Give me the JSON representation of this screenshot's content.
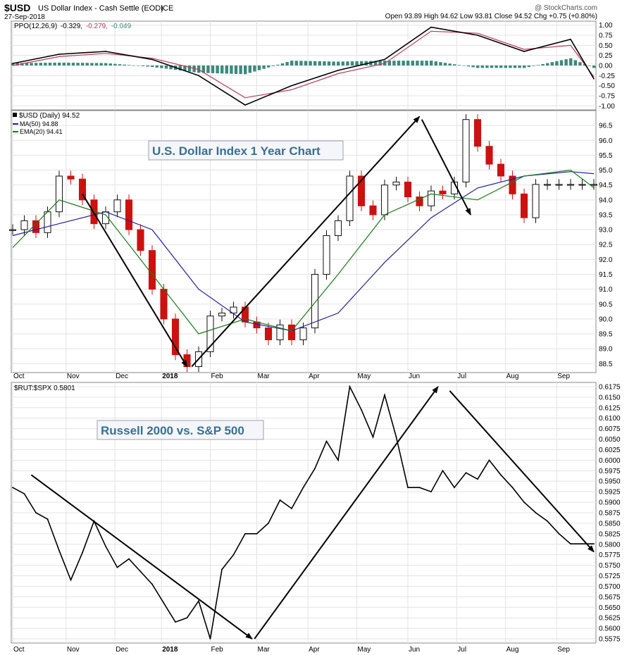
{
  "header": {
    "symbol": "$USD",
    "name": "US Dollar Index - Cash Settle (EOD)",
    "exchange": "ICE",
    "date": "27-Sep-2018",
    "ohlc": "Open 93.89  High 94.62  Low 93.81  Close 94.52  Chg +0.75 (+0.80%)",
    "watermark": "@ StockCharts.com"
  },
  "chart_data": [
    {
      "type": "line",
      "panel": "ppo",
      "legend": [
        "PPO(12,26,9) -0.329, -0.279, -0.049"
      ],
      "legend_parts": {
        "label": "PPO(12,26,9)",
        "ppo": "-0.329,",
        "signal": "-0.279,",
        "hist": "-0.049"
      },
      "ylim": [
        -1.1,
        1.1
      ],
      "yticks": [
        1.0,
        0.75,
        0.5,
        0.25,
        0.0,
        -0.25,
        -0.5,
        -0.75,
        -1.0
      ],
      "ytick_labels": [
        "1.00",
        "0.75",
        "0.50",
        "0.25",
        "0.00",
        "-0.25",
        "-0.50",
        "-0.75",
        "-1.00"
      ],
      "x": [
        0,
        20,
        40,
        60,
        80,
        100,
        120,
        140,
        160,
        180,
        200,
        220,
        240,
        250
      ],
      "series": [
        {
          "role": "ppo",
          "color": "#000000",
          "values": [
            0.05,
            0.28,
            0.35,
            0.15,
            -0.25,
            -0.98,
            -0.5,
            -0.12,
            0.15,
            0.95,
            0.75,
            0.35,
            0.65,
            -0.33
          ]
        },
        {
          "role": "signal",
          "color": "#c0395a",
          "values": [
            0.0,
            0.22,
            0.3,
            0.18,
            -0.1,
            -0.8,
            -0.6,
            -0.2,
            0.05,
            0.85,
            0.8,
            0.4,
            0.5,
            -0.28
          ]
        }
      ],
      "histogram_color": "#3b8a7a"
    },
    {
      "type": "bar",
      "panel": "price",
      "legend": [
        "$USD (Daily) 94.52",
        "MA(50) 94.88",
        "EMA(20) 94.41"
      ],
      "legend_colors": [
        "#000000",
        "#1f1fa3",
        "#1a7a1a"
      ],
      "ylim": [
        88.2,
        97.0
      ],
      "yticks": [
        96.5,
        96.0,
        95.5,
        95.0,
        94.5,
        94.0,
        93.5,
        93.0,
        92.5,
        92.0,
        91.5,
        91.0,
        90.5,
        90.0,
        89.5,
        89.0,
        88.5
      ],
      "ytick_labels": [
        "96.5",
        "96.0",
        "95.5",
        "95.0",
        "94.5",
        "94.0",
        "93.5",
        "93.0",
        "92.5",
        "92.0",
        "91.5",
        "91.0",
        "90.5",
        "90.0",
        "89.5",
        "89.0",
        "88.5"
      ],
      "x": [
        0,
        5,
        10,
        15,
        20,
        25,
        30,
        35,
        40,
        45,
        50,
        55,
        60,
        65,
        70,
        75,
        80,
        85,
        90,
        95,
        100,
        105,
        110,
        115,
        120,
        125,
        130,
        135,
        140,
        145,
        150,
        155,
        160,
        165,
        170,
        175,
        180,
        185,
        190,
        195,
        200,
        205,
        210,
        215,
        220,
        225,
        230,
        235,
        240,
        245,
        250
      ],
      "values": [
        93.0,
        93.3,
        92.9,
        93.6,
        94.8,
        94.7,
        94.0,
        93.2,
        93.6,
        94.0,
        93.0,
        92.3,
        91.0,
        90.0,
        88.8,
        88.4,
        88.9,
        90.1,
        90.2,
        90.4,
        89.9,
        89.7,
        89.3,
        89.8,
        89.3,
        89.7,
        91.5,
        92.8,
        93.3,
        94.8,
        93.8,
        93.5,
        94.5,
        94.6,
        94.1,
        93.8,
        94.3,
        94.2,
        94.6,
        96.7,
        95.8,
        95.2,
        94.8,
        94.2,
        93.4,
        94.52,
        94.52,
        94.52,
        94.52,
        94.52,
        94.52
      ],
      "ma50": {
        "x": [
          0,
          20,
          40,
          60,
          80,
          100,
          120,
          140,
          160,
          180,
          200,
          220,
          240,
          250
        ],
        "values": [
          92.8,
          93.2,
          93.6,
          93.0,
          91.0,
          89.9,
          89.6,
          90.2,
          91.9,
          93.4,
          94.4,
          94.8,
          94.95,
          94.88
        ]
      },
      "ema20": {
        "x": [
          0,
          20,
          40,
          60,
          80,
          100,
          120,
          140,
          160,
          180,
          200,
          220,
          240,
          250
        ],
        "values": [
          92.4,
          94.0,
          93.5,
          91.5,
          89.5,
          90.0,
          89.6,
          91.5,
          93.5,
          94.2,
          94.0,
          94.8,
          95.0,
          94.41
        ]
      },
      "annotation": "U.S. Dollar Index 1 Year Chart",
      "trend_arrows": [
        {
          "from": [
            30,
            94.2
          ],
          "to": [
            75,
            88.4
          ]
        },
        {
          "from": [
            77,
            88.4
          ],
          "to": [
            175,
            96.8
          ]
        },
        {
          "from": [
            176,
            96.7
          ],
          "to": [
            197,
            93.5
          ]
        }
      ]
    },
    {
      "type": "line",
      "panel": "ratio",
      "legend": [
        "$RUT:$SPX 0.5801"
      ],
      "ylim": [
        0.5565,
        0.6185
      ],
      "yticks": [
        0.6175,
        0.615,
        0.6125,
        0.61,
        0.6075,
        0.605,
        0.6025,
        0.6,
        0.5975,
        0.595,
        0.5925,
        0.59,
        0.5875,
        0.585,
        0.5825,
        0.58,
        0.5775,
        0.575,
        0.5725,
        0.57,
        0.5675,
        0.565,
        0.5625,
        0.56,
        0.5575
      ],
      "ytick_labels": [
        "0.6175",
        "0.6150",
        "0.6125",
        "0.6100",
        "0.6075",
        "0.6050",
        "0.6025",
        "0.6000",
        "0.5975",
        "0.5950",
        "0.5925",
        "0.5900",
        "0.5875",
        "0.5850",
        "0.5825",
        "0.5800",
        "0.5775",
        "0.5750",
        "0.5725",
        "0.5700",
        "0.5675",
        "0.5650",
        "0.5625",
        "0.5600",
        "0.5575"
      ],
      "x": [
        0,
        5,
        10,
        15,
        20,
        25,
        30,
        35,
        40,
        45,
        50,
        55,
        60,
        65,
        70,
        75,
        80,
        85,
        90,
        95,
        100,
        105,
        110,
        115,
        120,
        125,
        130,
        135,
        140,
        145,
        150,
        155,
        160,
        165,
        170,
        175,
        180,
        185,
        190,
        195,
        200,
        205,
        210,
        215,
        220,
        225,
        230,
        235,
        240,
        245,
        250
      ],
      "values": [
        0.5935,
        0.592,
        0.5875,
        0.586,
        0.5785,
        0.5715,
        0.578,
        0.5855,
        0.5795,
        0.5745,
        0.5765,
        0.5735,
        0.5705,
        0.566,
        0.5615,
        0.5625,
        0.5665,
        0.5575,
        0.574,
        0.5775,
        0.5825,
        0.5825,
        0.585,
        0.5905,
        0.5885,
        0.5935,
        0.598,
        0.6045,
        0.6,
        0.6175,
        0.612,
        0.6055,
        0.6155,
        0.6055,
        0.5935,
        0.5935,
        0.5925,
        0.5975,
        0.5935,
        0.597,
        0.5955,
        0.6,
        0.5965,
        0.5935,
        0.59,
        0.5875,
        0.5855,
        0.5825,
        0.5801,
        0.5801,
        0.5801
      ],
      "annotation": "Russell 2000 vs. S&P 500",
      "trend_arrows": [
        {
          "from": [
            8,
            0.5965
          ],
          "to": [
            103,
            0.5575
          ]
        },
        {
          "from": [
            104,
            0.5575
          ],
          "to": [
            183,
            0.6175
          ]
        },
        {
          "from": [
            188,
            0.6165
          ],
          "to": [
            250,
            0.5782
          ]
        }
      ]
    }
  ],
  "x_axis": {
    "months": [
      {
        "label": "Oct",
        "x": 0
      },
      {
        "label": "Nov",
        "x": 23
      },
      {
        "label": "Dec",
        "x": 44
      },
      {
        "label": "2018",
        "x": 64,
        "bold": true
      },
      {
        "label": "Feb",
        "x": 85
      },
      {
        "label": "Mar",
        "x": 105
      },
      {
        "label": "Apr",
        "x": 127
      },
      {
        "label": "May",
        "x": 148
      },
      {
        "label": "Jun",
        "x": 170
      },
      {
        "label": "Jul",
        "x": 191
      },
      {
        "label": "Aug",
        "x": 212
      },
      {
        "label": "Sep",
        "x": 234
      }
    ]
  }
}
